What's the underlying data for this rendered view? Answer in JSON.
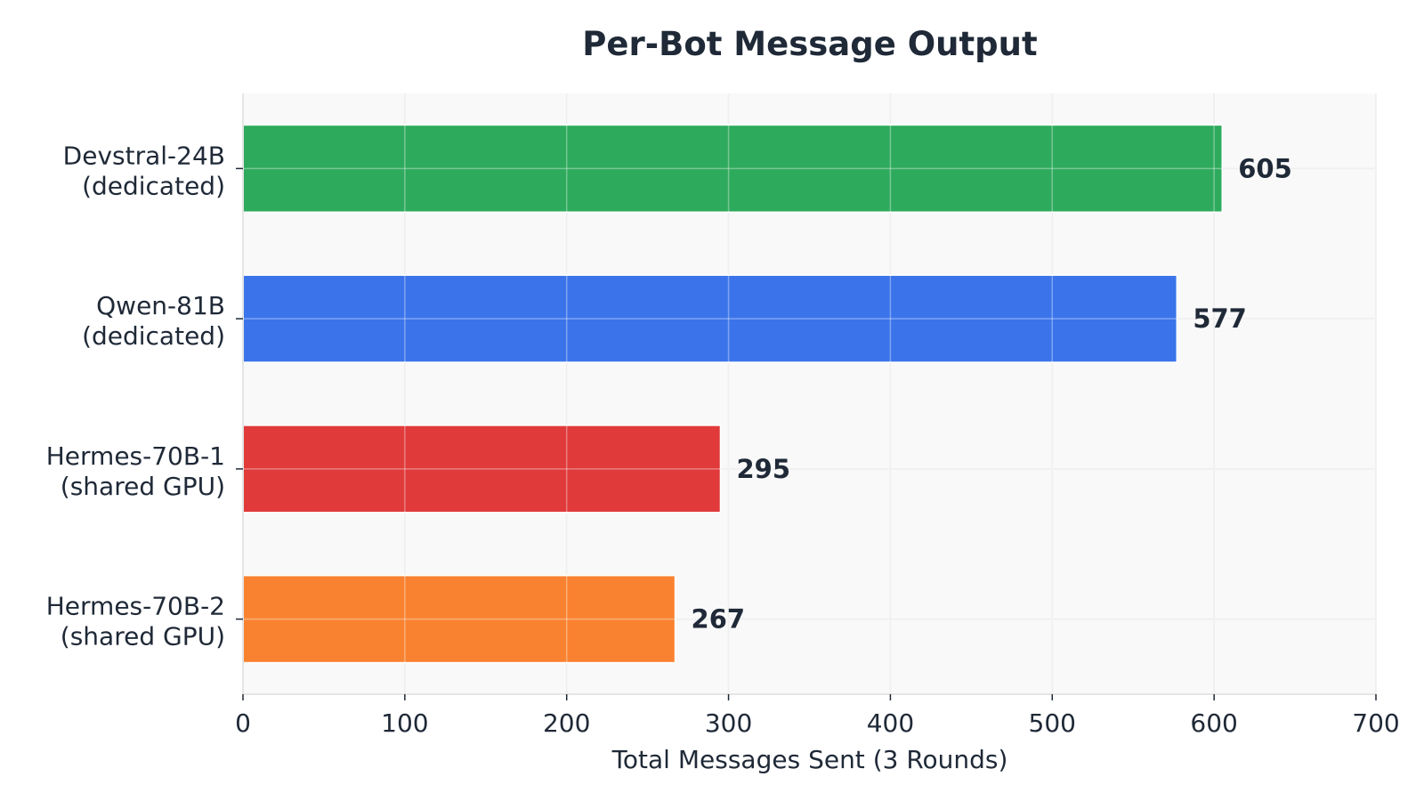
{
  "chart_data": {
    "type": "bar",
    "orientation": "horizontal",
    "title": "Per-Bot Message Output",
    "xlabel": "Total Messages Sent (3 Rounds)",
    "ylabel": "",
    "xlim": [
      0,
      700
    ],
    "xticks": [
      0,
      100,
      200,
      300,
      400,
      500,
      600,
      700
    ],
    "grid": true,
    "categories": [
      [
        "Devstral-24B",
        "(dedicated)"
      ],
      [
        "Qwen-81B",
        "(dedicated)"
      ],
      [
        "Hermes-70B-1",
        "(shared GPU)"
      ],
      [
        "Hermes-70B-2",
        "(shared GPU)"
      ]
    ],
    "values": [
      605,
      577,
      295,
      267
    ],
    "colors": [
      "#2eaa5c",
      "#3b74ea",
      "#e03a3a",
      "#f98230"
    ],
    "value_labels": [
      "605",
      "577",
      "295",
      "267"
    ]
  }
}
